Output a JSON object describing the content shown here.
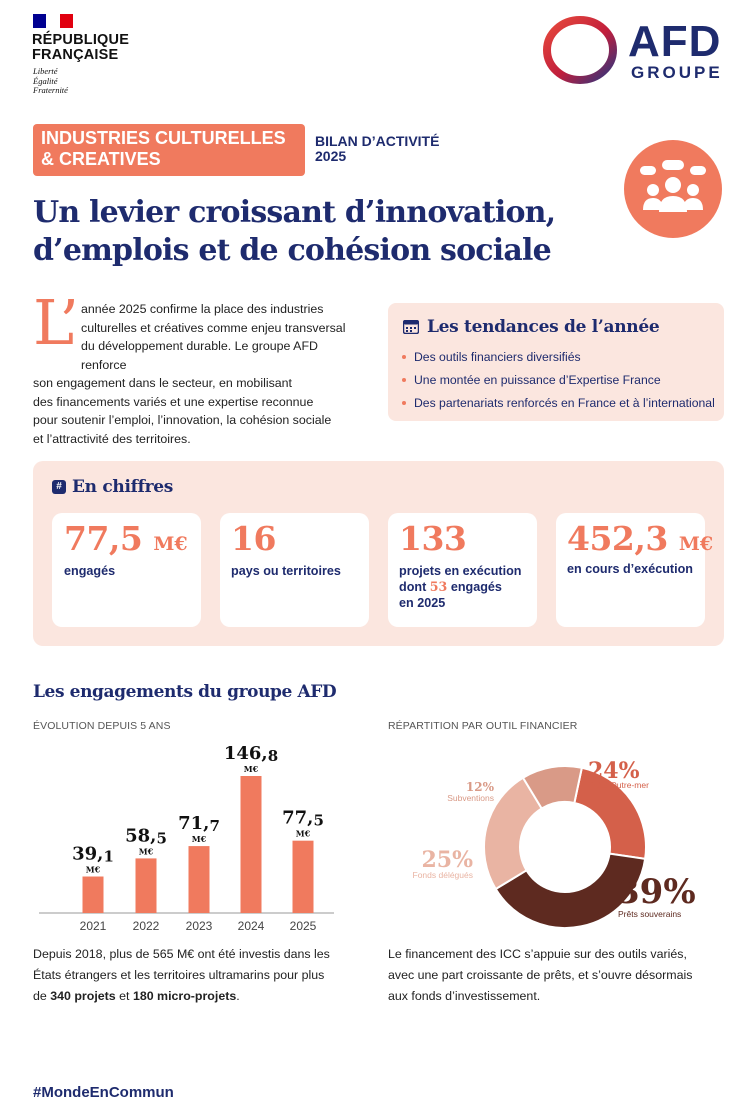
{
  "header": {
    "republique_line1": "RÉPUBLIQUE",
    "republique_line2": "FRANÇAISE",
    "motto": [
      "Liberté",
      "Égalité",
      "Fraternité"
    ],
    "afd_logo": "AFD",
    "afd_groupe": "GROUPE",
    "flag_colors": [
      "#000091",
      "#ffffff",
      "#e1000f"
    ]
  },
  "title_block": {
    "tag_line1": "INDUSTRIES CULTURELLES",
    "tag_line2": "& CREATIVES",
    "bilan_line1": "BILAN D’ACTIVITÉ",
    "bilan_line2": "2025",
    "title_line1": "Un levier croissant d’innovation,",
    "title_line2": "d’emplois et de cohésion sociale",
    "badge_icon": "people-discussion-icon"
  },
  "intro": {
    "dropcap": "L’",
    "lines": [
      "année 2025 confirme la place des industries",
      "culturelles et créatives comme enjeu transversal",
      "du développement durable. Le groupe AFD renforce",
      "son engagement dans le secteur, en mobilisant",
      "des financements variés et une expertise reconnue",
      "pour soutenir l’emploi, l’innovation, la cohésion sociale",
      "et l’attractivité des territoires."
    ]
  },
  "trends": {
    "icon": "calendar-icon",
    "title": "Les tendances de l’année",
    "items": [
      "Des outils financiers diversifiés",
      "Une montée en puissance d’Expertise France",
      "Des partenariats renforcés en France et à l’international"
    ]
  },
  "chiffres": {
    "icon": "hash-icon",
    "title": "En chiffres",
    "cards": [
      {
        "value": "77,5",
        "unit": "M€",
        "label_lines": [
          "engagés"
        ]
      },
      {
        "value": "16",
        "unit": "",
        "label_lines": [
          "pays ou territoires"
        ]
      },
      {
        "value": "133",
        "unit": "",
        "label_lines": [
          "projets en exécution",
          "dont",
          "53",
          "engagés",
          "en 2025"
        ]
      },
      {
        "value": "452,3",
        "unit": "M€",
        "label_lines": [
          "en cours d’exécution"
        ]
      }
    ]
  },
  "engagements": {
    "title": "Les engagements du groupe AFD",
    "evolution_label": "ÉVOLUTION DEPUIS 5 ANS",
    "repartition_label": "RÉPARTITION PAR OUTIL FINANCIER",
    "unit_label": "M€",
    "text_before": "Depuis 2018, plus de 565 M€ ont été investis dans les",
    "text_line2": "États étrangers et les territoires ultramarins pour plus",
    "text_de": "de",
    "text_bold1": "340 projets",
    "text_et": "et",
    "text_bold2": "180 micro-projets",
    "text_end": ".",
    "repartition_text": [
      "Le financement des ICC s’appuie sur des outils variés,",
      "avec une part croissante de prêts, et s’ouvre désormais",
      "aux fonds d’investissement."
    ]
  },
  "chart_data": [
    {
      "type": "bar",
      "categories": [
        "2021",
        "2022",
        "2023",
        "2024",
        "2025"
      ],
      "values": [
        39.1,
        58.5,
        71.7,
        146.8,
        77.5
      ],
      "value_labels": [
        [
          "39,",
          "1"
        ],
        [
          "58,",
          "5"
        ],
        [
          "71,",
          "7"
        ],
        [
          "146,",
          "8"
        ],
        [
          "77,",
          "5"
        ]
      ],
      "unit": "M€",
      "color": "#f07a5e",
      "ylim": [
        0,
        160
      ]
    },
    {
      "type": "pie",
      "categories": [
        "Prêts Outre-mer",
        "Prêts souverains",
        "Fonds délégués",
        "Subventions"
      ],
      "values": [
        24,
        39,
        25,
        12
      ],
      "labels": [
        "24%",
        "39%",
        "25%",
        "12%"
      ],
      "colors": [
        "#d4604a",
        "#5e2a20",
        "#e9b4a3",
        "#d99a87"
      ]
    }
  ],
  "footer": {
    "hashtag": "#MondeEnCommun"
  }
}
